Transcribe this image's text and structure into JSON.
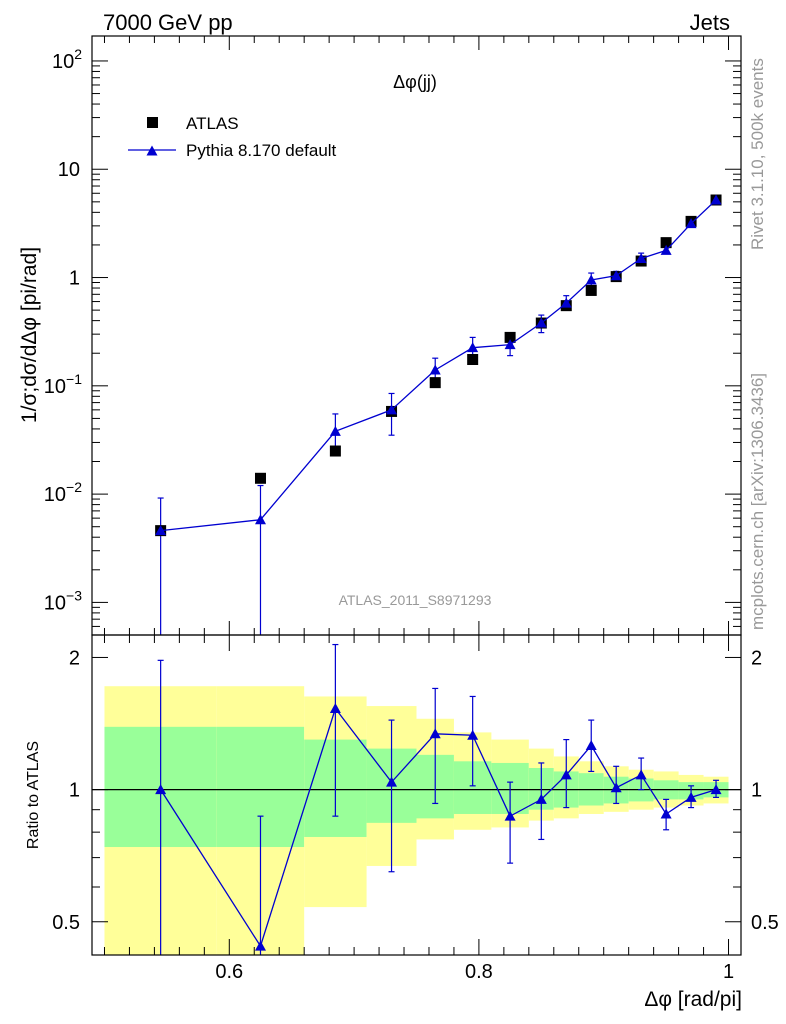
{
  "header": {
    "left": "7000 GeV pp",
    "right": "Jets"
  },
  "side": {
    "top": "Rivet 3.1.10,  500k events",
    "bottom": "mcplots.cern.ch [arXiv:1306.3436]"
  },
  "colors": {
    "atlas": "#000000",
    "mc": "#0000d0",
    "band_inner": "#99ff99",
    "band_outer": "#ffff99",
    "faint_text": "#999999"
  },
  "chart_data": [
    {
      "type": "scatter",
      "title": "Δφ(jj)",
      "ylabel": "1/σ;dσ/dΔφ [pi/rad]",
      "yscale": "log",
      "xlim": [
        0.49,
        1.01
      ],
      "ylim": [
        0.0005,
        170
      ],
      "x_ticks": [
        0.6,
        0.8,
        1.0
      ],
      "y_tick_labels": [
        "10^-3",
        "10^-2",
        "10^-1",
        "1",
        "10",
        "10^2"
      ],
      "watermark": "ATLAS_2011_S8971293",
      "legend": {
        "placement": "top-left",
        "entries": [
          "ATLAS",
          "Pythia 8.170 default"
        ]
      },
      "series": [
        {
          "name": "ATLAS",
          "marker": "square",
          "x": [
            0.545,
            0.625,
            0.685,
            0.73,
            0.765,
            0.795,
            0.825,
            0.85,
            0.87,
            0.89,
            0.91,
            0.93,
            0.95,
            0.97,
            0.99
          ],
          "y": [
            0.0046,
            0.014,
            0.025,
            0.058,
            0.107,
            0.175,
            0.28,
            0.38,
            0.55,
            0.76,
            1.02,
            1.42,
            2.1,
            3.3,
            5.2
          ]
        },
        {
          "name": "Pythia 8.170 default",
          "marker": "triangle",
          "x": [
            0.545,
            0.625,
            0.685,
            0.73,
            0.765,
            0.795,
            0.825,
            0.85,
            0.87,
            0.89,
            0.91,
            0.93,
            0.95,
            0.97,
            0.99
          ],
          "y": [
            0.0046,
            0.0058,
            0.038,
            0.06,
            0.14,
            0.225,
            0.24,
            0.38,
            0.58,
            0.95,
            1.04,
            1.5,
            1.78,
            3.15,
            5.2
          ],
          "err_lo": [
            0.0042,
            0.0054,
            0.012,
            0.025,
            0.03,
            0.04,
            0.05,
            0.07,
            0.07,
            0.12,
            0.08,
            0.12,
            0.12,
            0.15,
            0.15
          ],
          "err_hi": [
            0.0046,
            0.0062,
            0.017,
            0.025,
            0.04,
            0.055,
            0.05,
            0.07,
            0.1,
            0.15,
            0.1,
            0.18,
            0.15,
            0.15,
            0.2
          ]
        }
      ]
    },
    {
      "type": "scatter",
      "ylabel": "Ratio to ATLAS",
      "xlabel": "Δφ [rad/pi]",
      "xlim": [
        0.49,
        1.01
      ],
      "ylim": [
        0.42,
        2.25
      ],
      "x_ticks": [
        0.6,
        0.8,
        1.0
      ],
      "y_ticks": [
        0.5,
        1,
        2
      ],
      "reference_line": 1,
      "bands": {
        "edges": [
          0.5,
          0.59,
          0.66,
          0.71,
          0.75,
          0.78,
          0.81,
          0.84,
          0.86,
          0.88,
          0.9,
          0.92,
          0.94,
          0.96,
          0.98,
          1.0
        ],
        "inner_lo": [
          0.74,
          0.74,
          0.78,
          0.84,
          0.86,
          0.88,
          0.88,
          0.9,
          0.91,
          0.92,
          0.93,
          0.94,
          0.95,
          0.95,
          0.96
        ],
        "inner_hi": [
          1.39,
          1.39,
          1.3,
          1.24,
          1.2,
          1.16,
          1.15,
          1.12,
          1.1,
          1.09,
          1.07,
          1.06,
          1.05,
          1.04,
          1.04
        ],
        "outer_lo": [
          0.42,
          0.42,
          0.54,
          0.67,
          0.77,
          0.81,
          0.82,
          0.85,
          0.86,
          0.88,
          0.89,
          0.9,
          0.91,
          0.92,
          0.93
        ],
        "outer_hi": [
          1.72,
          1.72,
          1.63,
          1.55,
          1.45,
          1.35,
          1.3,
          1.24,
          1.19,
          1.16,
          1.13,
          1.11,
          1.1,
          1.08,
          1.07
        ]
      },
      "series": [
        {
          "name": "Pythia 8.170 default",
          "marker": "triangle",
          "x": [
            0.545,
            0.625,
            0.685,
            0.73,
            0.765,
            0.795,
            0.825,
            0.85,
            0.87,
            0.89,
            0.91,
            0.93,
            0.95,
            0.97,
            0.99
          ],
          "y": [
            1.0,
            0.44,
            1.53,
            1.04,
            1.34,
            1.33,
            0.87,
            0.95,
            1.08,
            1.26,
            1.01,
            1.08,
            0.88,
            0.96,
            1.0
          ],
          "err_lo": [
            0.6,
            0.1,
            0.66,
            0.39,
            0.41,
            0.31,
            0.19,
            0.18,
            0.17,
            0.16,
            0.08,
            0.08,
            0.07,
            0.05,
            0.04
          ],
          "err_hi": [
            0.97,
            0.43,
            0.61,
            0.4,
            0.36,
            0.3,
            0.17,
            0.2,
            0.22,
            0.18,
            0.12,
            0.1,
            0.07,
            0.06,
            0.05
          ]
        }
      ]
    }
  ]
}
